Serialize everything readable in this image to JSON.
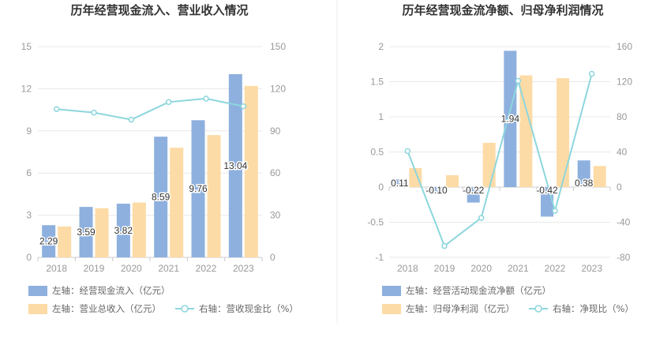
{
  "chart_data": [
    {
      "type": "bar",
      "title": "历年经营现金流入、营业收入情况",
      "categories": [
        "2018",
        "2019",
        "2020",
        "2021",
        "2022",
        "2023"
      ],
      "left_axis": {
        "ticks": [
          "0",
          "3",
          "6",
          "9",
          "12",
          "15"
        ],
        "ylim": [
          0,
          15
        ]
      },
      "right_axis": {
        "ticks": [
          "0",
          "30",
          "60",
          "90",
          "120",
          "150"
        ],
        "ylim": [
          0,
          150
        ]
      },
      "grid": true,
      "legend_position": "bottom-left",
      "series": [
        {
          "name": "左轴：经营现金流入（亿元）",
          "kind": "bar",
          "axis": "left",
          "color": "#8eb0de",
          "values": [
            2.29,
            3.59,
            3.82,
            8.59,
            9.76,
            13.04
          ],
          "labels": [
            "2.29",
            "3.59",
            "3.82",
            "8.59",
            "9.76",
            "13.04"
          ]
        },
        {
          "name": "左轴：营业总收入（亿元）",
          "kind": "bar",
          "axis": "left",
          "color": "#fddba6",
          "values": [
            2.2,
            3.5,
            3.9,
            7.8,
            8.7,
            12.2
          ]
        },
        {
          "name": "右轴：营收现金比（%）",
          "kind": "line",
          "axis": "right",
          "color": "#8dd6dd",
          "values": [
            105.5,
            103,
            98,
            110.5,
            113,
            107.5
          ]
        }
      ]
    },
    {
      "type": "bar",
      "title": "历年经营现金流净额、归母净利润情况",
      "categories": [
        "2018",
        "2019",
        "2020",
        "2021",
        "2022",
        "2023"
      ],
      "left_axis": {
        "ticks": [
          "-1",
          "-0.5",
          "0",
          "0.5",
          "1",
          "1.5",
          "2"
        ],
        "ylim": [
          -1,
          2
        ]
      },
      "right_axis": {
        "ticks": [
          "-80",
          "-40",
          "0",
          "40",
          "80",
          "120",
          "160"
        ],
        "ylim": [
          -80,
          160
        ]
      },
      "grid": true,
      "legend_position": "bottom-left",
      "series": [
        {
          "name": "左轴：经营活动现金流净额（亿元）",
          "kind": "bar",
          "axis": "left",
          "color": "#8eb0de",
          "values": [
            0.11,
            -0.1,
            -0.22,
            1.94,
            -0.42,
            0.38
          ],
          "labels": [
            "0.11",
            "-0.10",
            "-0.22",
            "1.94",
            "-0.42",
            "0.38"
          ]
        },
        {
          "name": "左轴：归母净利润（亿元）",
          "kind": "bar",
          "axis": "left",
          "color": "#fddba6",
          "values": [
            0.27,
            0.17,
            0.63,
            1.59,
            1.55,
            0.3
          ]
        },
        {
          "name": "右轴：净现比（%）",
          "kind": "line",
          "axis": "right",
          "color": "#8dd6dd",
          "values": [
            41,
            -67,
            -35,
            121,
            -27,
            129
          ]
        }
      ]
    }
  ]
}
